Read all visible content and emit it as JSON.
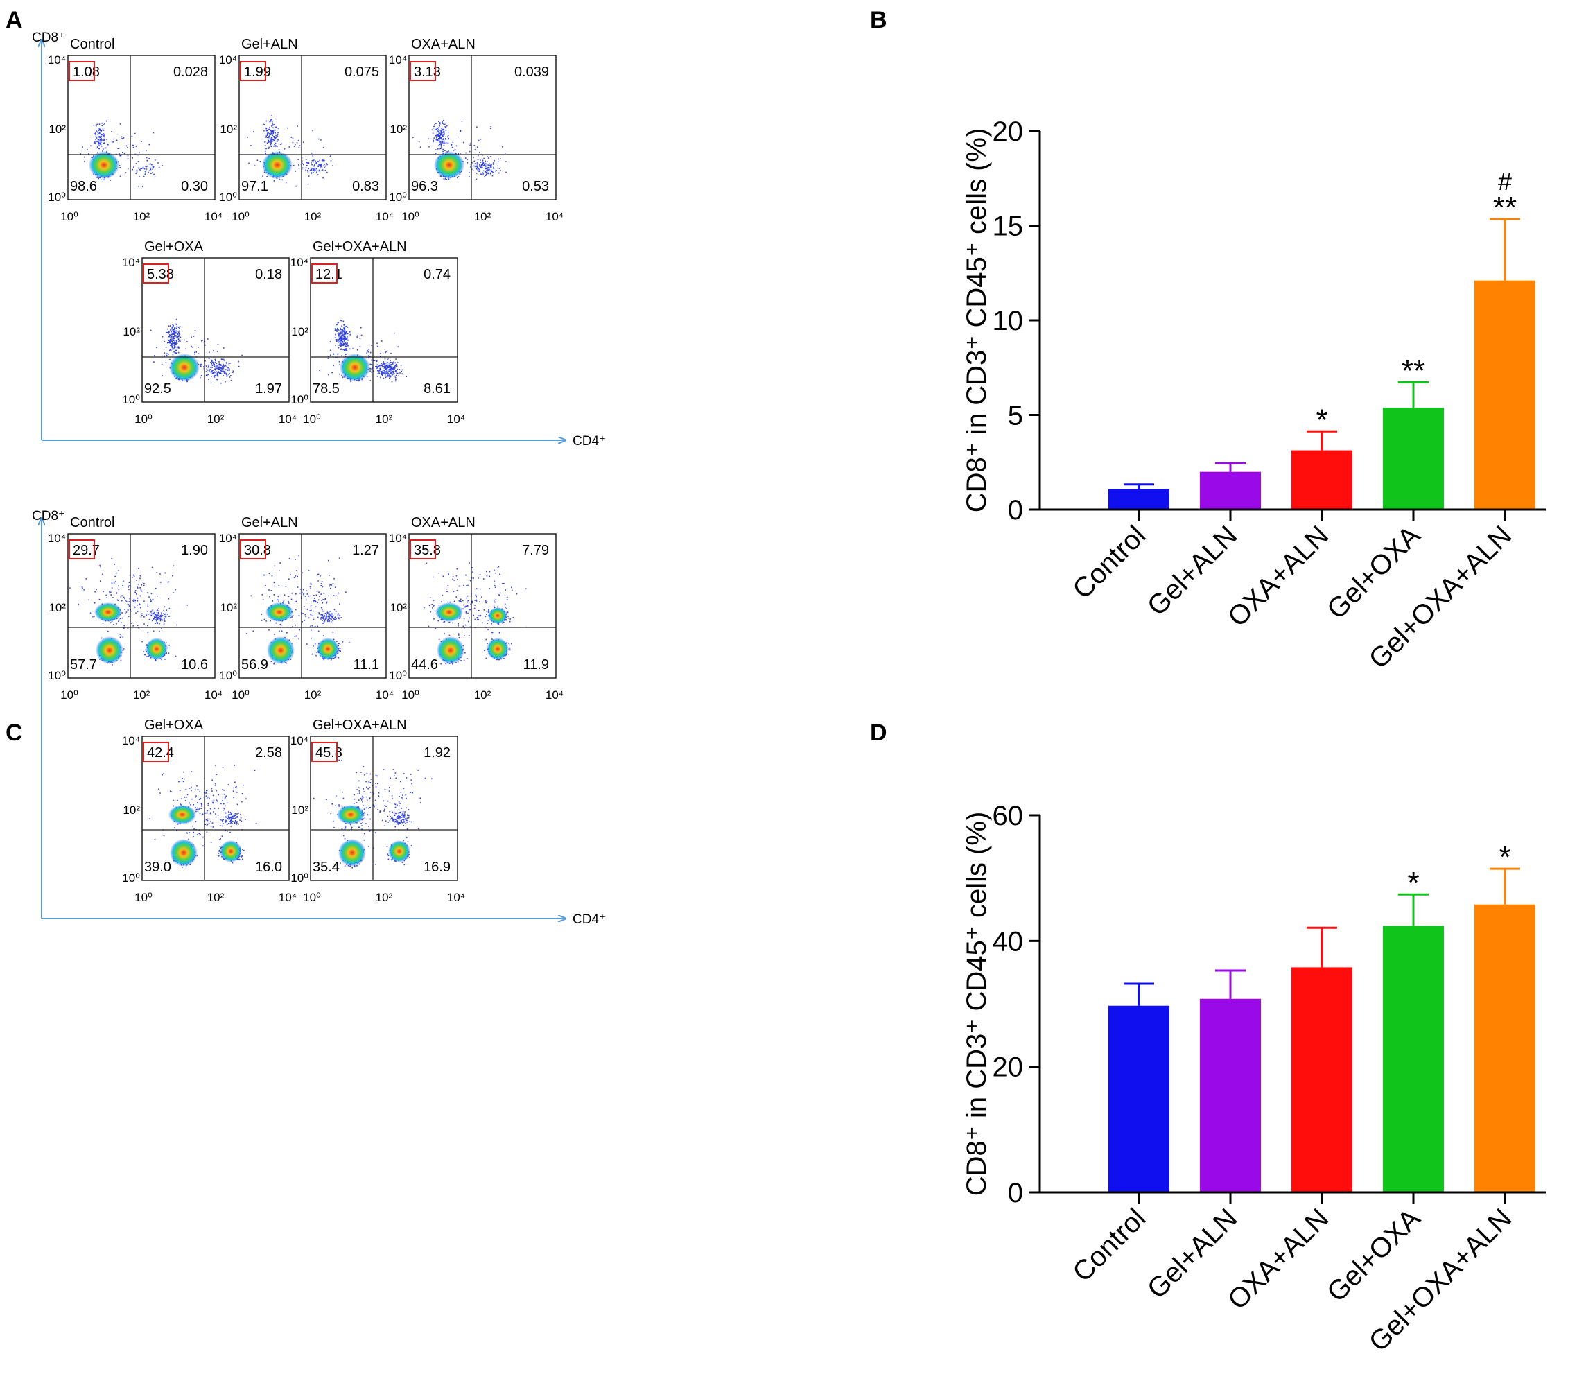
{
  "panel_labels": {
    "a": "A",
    "b": "B",
    "c": "C",
    "d": "D"
  },
  "flow_axes": {
    "y_label": "CD8⁺",
    "x_label": "CD4⁺",
    "tick_labels": [
      "10⁰",
      "10²",
      "10⁴"
    ]
  },
  "panels": [
    {
      "id": "A",
      "plots": [
        {
          "name": "Control",
          "q1": "1.08",
          "q2": "0.028",
          "q3": "98.6",
          "q4": "0.30",
          "mode": "single"
        },
        {
          "name": "Gel+ALN",
          "q1": "1.99",
          "q2": "0.075",
          "q3": "97.1",
          "q4": "0.83",
          "mode": "single"
        },
        {
          "name": "OXA+ALN",
          "q1": "3.13",
          "q2": "0.039",
          "q3": "96.3",
          "q4": "0.53",
          "mode": "single"
        },
        {
          "name": "Gel+OXA",
          "q1": "5.38",
          "q2": "0.18",
          "q3": "92.5",
          "q4": "1.97",
          "mode": "single"
        },
        {
          "name": "Gel+OXA+ALN",
          "q1": "12.1",
          "q2": "0.74",
          "q3": "78.5",
          "q4": "8.61",
          "mode": "single"
        }
      ]
    },
    {
      "id": "C",
      "plots": [
        {
          "name": "Control",
          "q1": "29.7",
          "q2": "1.90",
          "q3": "57.7",
          "q4": "10.6",
          "mode": "multi"
        },
        {
          "name": "Gel+ALN",
          "q1": "30.8",
          "q2": "1.27",
          "q3": "56.9",
          "q4": "11.1",
          "mode": "multi"
        },
        {
          "name": "OXA+ALN",
          "q1": "35.8",
          "q2": "7.79",
          "q3": "44.6",
          "q4": "11.9",
          "mode": "multi"
        },
        {
          "name": "Gel+OXA",
          "q1": "42.4",
          "q2": "2.58",
          "q3": "39.0",
          "q4": "16.0",
          "mode": "multi"
        },
        {
          "name": "Gel+OXA+ALN",
          "q1": "45.8",
          "q2": "1.92",
          "q3": "35.4",
          "q4": "16.9",
          "mode": "multi"
        }
      ]
    }
  ],
  "chart_data": [
    {
      "id": "B",
      "type": "bar",
      "ylabel": "CD8⁺ in CD3⁺ CD45⁺ cells (%)",
      "categories": [
        "Control",
        "Gel+ALN",
        "OXA+ALN",
        "Gel+OXA",
        "Gel+OXA+ALN"
      ],
      "values": [
        1.08,
        1.99,
        3.13,
        5.38,
        12.1
      ],
      "errors": [
        0.25,
        0.45,
        1.0,
        1.35,
        3.25
      ],
      "annotations": [
        "",
        "",
        "*",
        "**",
        "**"
      ],
      "annotations2": [
        "",
        "",
        "",
        "",
        "#"
      ],
      "colors": [
        "#0f0ff0",
        "#9a09e8",
        "#ff0d0d",
        "#11c41b",
        "#ff8300"
      ],
      "ylim": [
        0,
        20
      ],
      "yticks": [
        0,
        5,
        10,
        15,
        20
      ]
    },
    {
      "id": "D",
      "type": "bar",
      "ylabel": "CD8⁺ in CD3⁺ CD45⁺ cells (%)",
      "categories": [
        "Control",
        "Gel+ALN",
        "OXA+ALN",
        "Gel+OXA",
        "Gel+OXA+ALN"
      ],
      "values": [
        29.7,
        30.8,
        35.8,
        42.4,
        45.8
      ],
      "errors": [
        3.5,
        4.5,
        6.3,
        5.0,
        5.7
      ],
      "annotations": [
        "",
        "",
        "",
        "*",
        "*"
      ],
      "annotations2": [
        "",
        "",
        "",
        "",
        ""
      ],
      "colors": [
        "#0f0ff0",
        "#9a09e8",
        "#ff0d0d",
        "#11c41b",
        "#ff8300"
      ],
      "ylim": [
        0,
        60
      ],
      "yticks": [
        0,
        20,
        40,
        60
      ]
    }
  ]
}
